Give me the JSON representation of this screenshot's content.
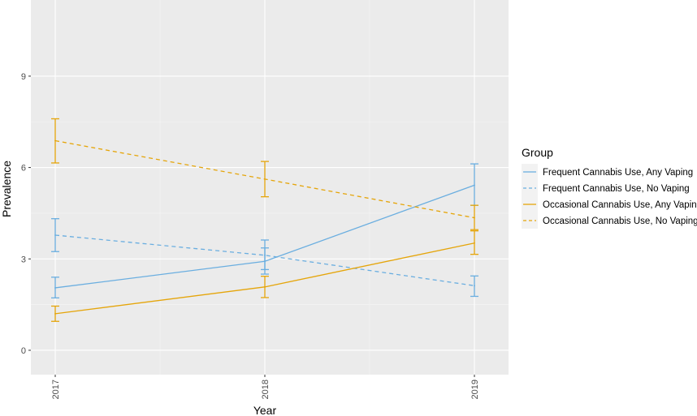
{
  "chart_data": {
    "type": "line",
    "xlabel": "Year",
    "ylabel": "Prevalence",
    "x": [
      "2017",
      "2018",
      "2019"
    ],
    "ylim": [
      -0.8,
      11.5
    ],
    "yticks": [
      0,
      3,
      6,
      9
    ],
    "grid": true,
    "legend": {
      "title": "Group",
      "placement": "right"
    },
    "series": [
      {
        "name": "Frequent Cannabis Use, Any Vaping",
        "color": "#6aaee0",
        "dashed": false,
        "values": [
          2.05,
          2.92,
          5.42
        ],
        "error_low": [
          1.72,
          2.5,
          4.76
        ],
        "error_high": [
          2.4,
          3.36,
          6.12
        ]
      },
      {
        "name": "Frequent Cannabis Use, No Vaping",
        "color": "#6aaee0",
        "dashed": true,
        "values": [
          3.78,
          3.12,
          2.12
        ],
        "error_low": [
          3.24,
          2.65,
          1.77
        ],
        "error_high": [
          4.32,
          3.62,
          2.44
        ]
      },
      {
        "name": "Occasional Cannabis Use, Any Vaping",
        "color": "#e5a50a",
        "dashed": false,
        "values": [
          1.2,
          2.08,
          3.52
        ],
        "error_low": [
          0.95,
          1.73,
          3.15
        ],
        "error_high": [
          1.45,
          2.43,
          3.92
        ]
      },
      {
        "name": "Occasional Cannabis Use, No Vaping",
        "color": "#e5a50a",
        "dashed": true,
        "values": [
          6.88,
          5.62,
          4.35
        ],
        "error_low": [
          6.15,
          5.04,
          3.96
        ],
        "error_high": [
          7.6,
          6.2,
          4.76
        ]
      }
    ]
  }
}
